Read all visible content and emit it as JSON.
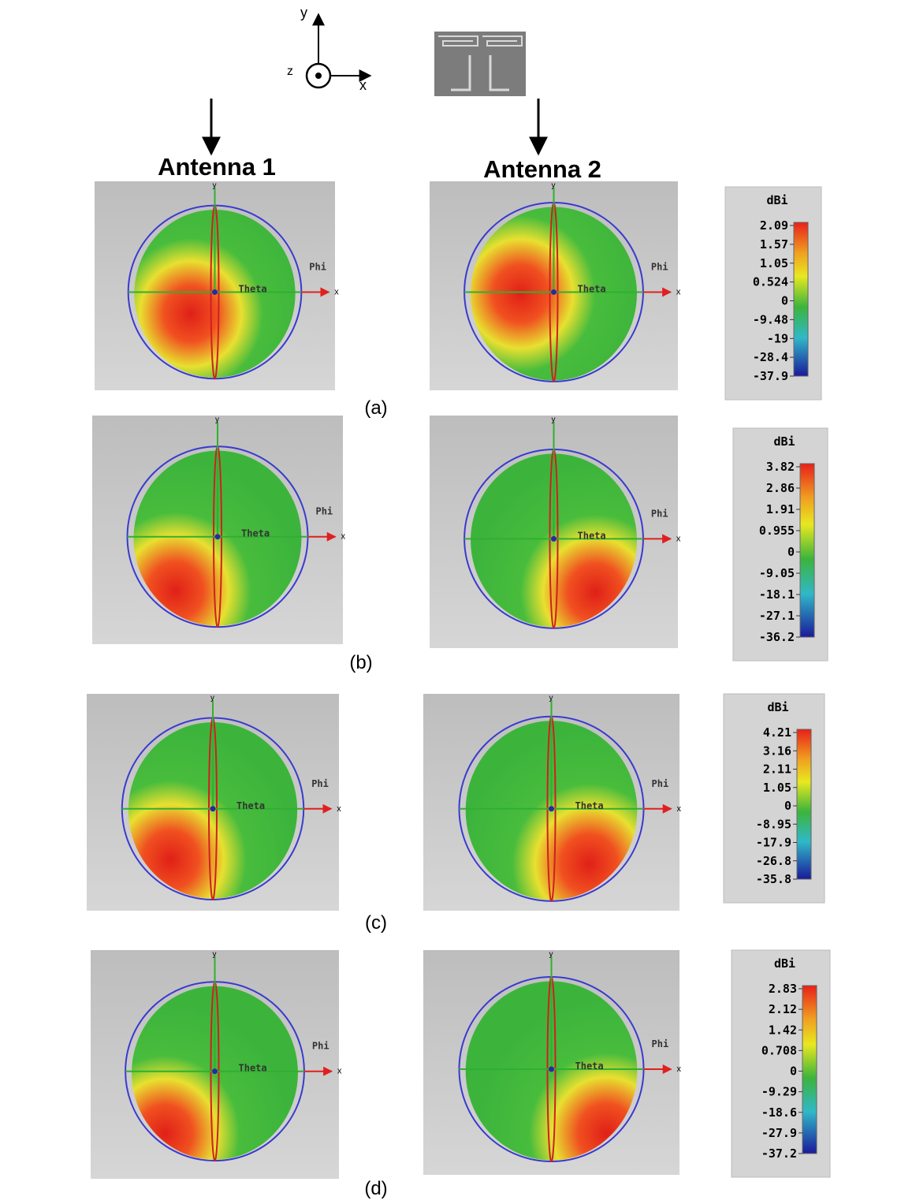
{
  "axes": {
    "y": "y",
    "z": "z",
    "x": "x"
  },
  "columns": [
    "Antenna 1",
    "Antenna 2"
  ],
  "pattern_labels": {
    "y": "y",
    "x": "x",
    "phi": "Phi",
    "theta": "Theta"
  },
  "rows": [
    {
      "label": "(a)",
      "colorbar": {
        "unit": "dBi",
        "ticks": [
          "2.09",
          "1.57",
          "1.05",
          "0.524",
          "0",
          "-9.48",
          "-19",
          "-28.4",
          "-37.9"
        ]
      }
    },
    {
      "label": "(b)",
      "colorbar": {
        "unit": "dBi",
        "ticks": [
          "3.82",
          "2.86",
          "1.91",
          "0.955",
          "0",
          "-9.05",
          "-18.1",
          "-27.1",
          "-36.2"
        ]
      }
    },
    {
      "label": "(c)",
      "colorbar": {
        "unit": "dBi",
        "ticks": [
          "4.21",
          "3.16",
          "2.11",
          "1.05",
          "0",
          "-8.95",
          "-17.9",
          "-26.8",
          "-35.8"
        ]
      }
    },
    {
      "label": "(d)",
      "colorbar": {
        "unit": "dBi",
        "ticks": [
          "2.83",
          "2.12",
          "1.42",
          "0.708",
          "0",
          "-9.29",
          "-18.6",
          "-27.9",
          "-37.2"
        ]
      }
    }
  ]
}
